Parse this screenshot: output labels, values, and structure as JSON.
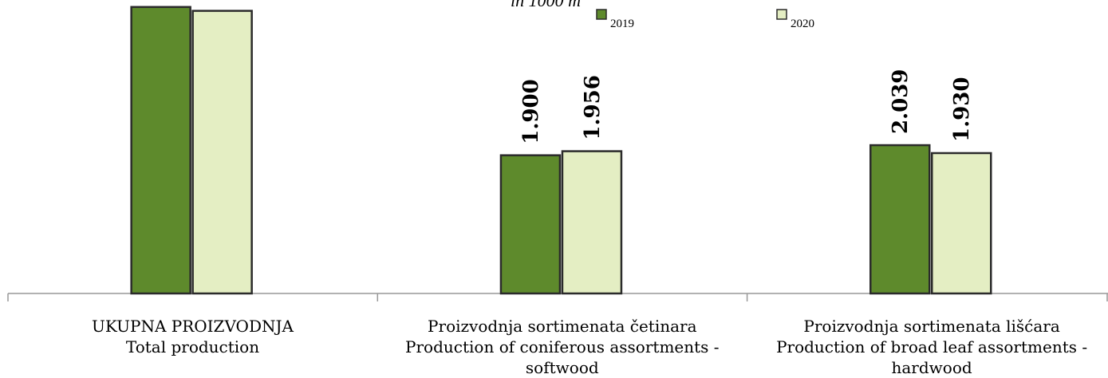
{
  "chart_data": {
    "type": "bar",
    "subtitle": "in 1000 m",
    "categories": [
      "UKUPNA PROIZVODNJA\nTotal production",
      "Proizvodnja sortimenata četinara\nProduction of coniferous assortments -\nsoftwood",
      "Proizvodnja sortimenata lišćara\nProduction of broad leaf assortments -\nhardwood"
    ],
    "series": [
      {
        "name": "2019",
        "color": "#5e8a2c",
        "values": [
          3939,
          1900,
          2039
        ],
        "value_labels": [
          null,
          "1.900",
          "2.039"
        ]
      },
      {
        "name": "2020",
        "color": "#e4eec3",
        "values": [
          3886,
          1956,
          1930
        ],
        "value_labels": [
          null,
          "1.956",
          "1.930"
        ]
      }
    ]
  }
}
